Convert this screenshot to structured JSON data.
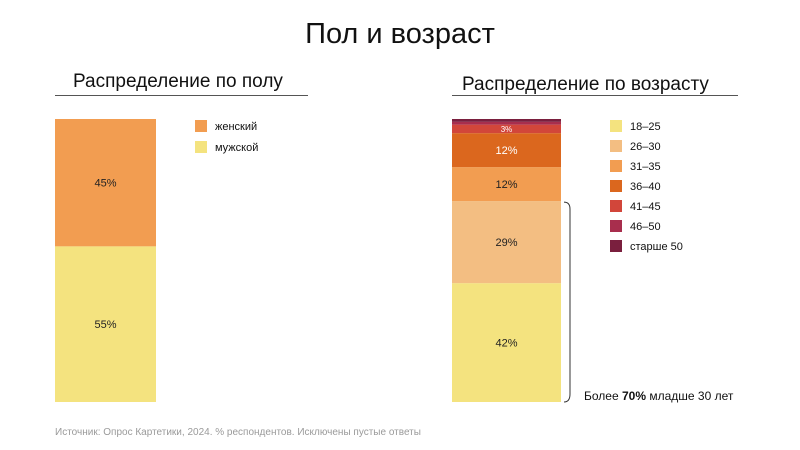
{
  "title": "Пол и возраст",
  "panels": {
    "gender_title": "Распределение по полу",
    "age_title": "Распределение по возрасту"
  },
  "annotation": {
    "prefix": "Более ",
    "bold": "70%",
    "suffix": " младше 30 лет"
  },
  "footnote": "Источник: Опрос Картетики, 2024. % респондентов. Исключены пустые ответы",
  "chart_data": [
    {
      "type": "bar",
      "stacked": true,
      "title": "Распределение по полу",
      "categories": [
        ""
      ],
      "ylim": [
        0,
        100
      ],
      "grid": false,
      "legend_position": "top-right",
      "series": [
        {
          "name": "мужской",
          "values": [
            55
          ],
          "label": "55%",
          "color": "#F4E37F"
        },
        {
          "name": "женский",
          "values": [
            45
          ],
          "label": "45%",
          "color": "#F29D51"
        }
      ]
    },
    {
      "type": "bar",
      "stacked": true,
      "title": "Распределение по возрасту",
      "categories": [
        ""
      ],
      "ylim": [
        0,
        100
      ],
      "grid": false,
      "legend_position": "right",
      "series": [
        {
          "name": "18–25",
          "values": [
            42
          ],
          "label": "42%",
          "color": "#F4E37F"
        },
        {
          "name": "26–30",
          "values": [
            29
          ],
          "label": "29%",
          "color": "#F3BE82"
        },
        {
          "name": "31–35",
          "values": [
            12
          ],
          "label": "12%",
          "color": "#F29D51"
        },
        {
          "name": "36–40",
          "values": [
            12
          ],
          "label": "12%",
          "color": "#DB671E"
        },
        {
          "name": "41–45",
          "values": [
            3
          ],
          "label": "3%",
          "color": "#D2463A"
        },
        {
          "name": "46–50",
          "values": [
            1
          ],
          "label": "",
          "color": "#A82E4D"
        },
        {
          "name": "старше 50",
          "values": [
            1
          ],
          "label": "",
          "color": "#7A1F3E"
        }
      ]
    }
  ]
}
